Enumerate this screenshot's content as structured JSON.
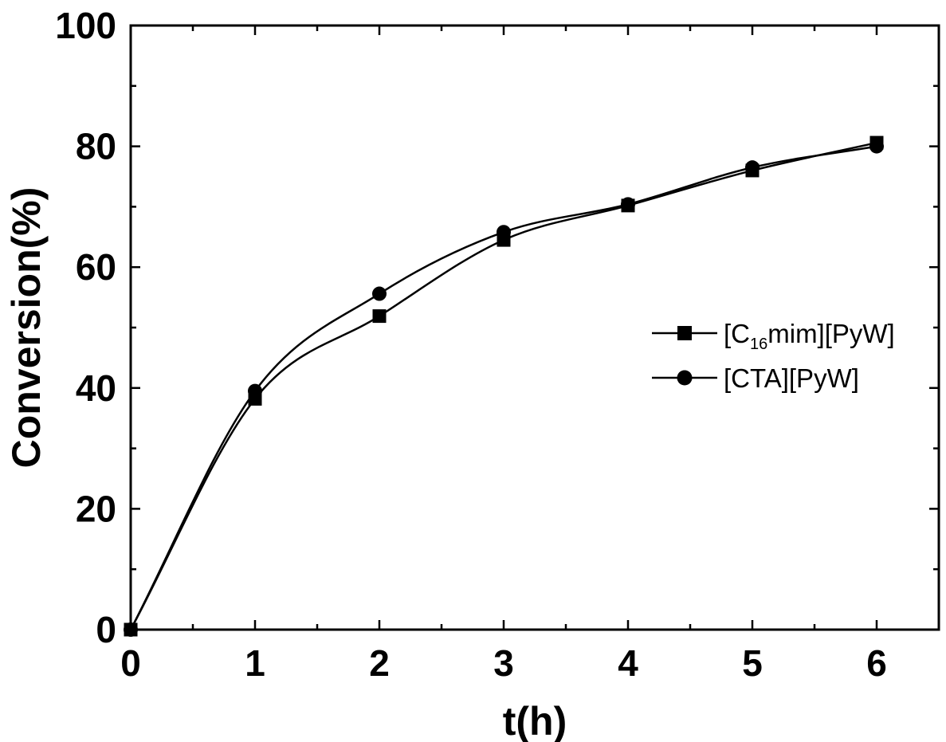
{
  "chart_data": {
    "type": "line",
    "xlabel": "t(h)",
    "ylabel": "Conversion(%)",
    "xlim": [
      0,
      6.5
    ],
    "ylim": [
      0,
      100
    ],
    "xticks": [
      "0",
      "1",
      "2",
      "3",
      "4",
      "5",
      "6"
    ],
    "yticks": [
      "0",
      "20",
      "40",
      "60",
      "80",
      "100"
    ],
    "grid": false,
    "legend_position": "center-right",
    "series": [
      {
        "name_prefix": "[C",
        "name_sub": "16",
        "name_suffix": "mim][PyW]",
        "marker": "square",
        "color": "#000000",
        "x": [
          0,
          1,
          2,
          3,
          4,
          5,
          6
        ],
        "y": [
          0,
          38.2,
          51.9,
          64.5,
          70.2,
          76.0,
          80.6
        ]
      },
      {
        "name": "[CTA][PyW]",
        "marker": "circle",
        "color": "#000000",
        "x": [
          0,
          1,
          2,
          3,
          4,
          5,
          6
        ],
        "y": [
          0,
          39.5,
          55.6,
          65.8,
          70.4,
          76.5,
          80.0
        ]
      }
    ]
  }
}
